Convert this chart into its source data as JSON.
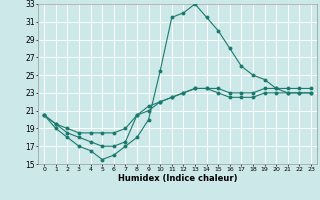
{
  "xlabel": "Humidex (Indice chaleur)",
  "bg_color": "#cce8e8",
  "grid_color": "#ffffff",
  "line_color": "#1a7a6e",
  "xlim": [
    -0.5,
    23.5
  ],
  "ylim": [
    15,
    33
  ],
  "xticks": [
    0,
    1,
    2,
    3,
    4,
    5,
    6,
    7,
    8,
    9,
    10,
    11,
    12,
    13,
    14,
    15,
    16,
    17,
    18,
    19,
    20,
    21,
    22,
    23
  ],
  "yticks": [
    15,
    17,
    19,
    21,
    23,
    25,
    27,
    29,
    31,
    33
  ],
  "line1_x": [
    0,
    1,
    2,
    3,
    4,
    5,
    6,
    7,
    8,
    9,
    10,
    11,
    12,
    13,
    14,
    15,
    16,
    17,
    18,
    19,
    20,
    21,
    22,
    23
  ],
  "line1_y": [
    20.5,
    19.0,
    18.0,
    17.0,
    16.5,
    15.5,
    16.0,
    17.0,
    18.0,
    20.0,
    25.5,
    31.5,
    32.0,
    33.0,
    31.5,
    30.0,
    28.0,
    26.0,
    25.0,
    24.5,
    23.5,
    23.0,
    23.0,
    23.0
  ],
  "line2_x": [
    0,
    1,
    2,
    3,
    4,
    5,
    6,
    7,
    8,
    9,
    10,
    11,
    12,
    13,
    14,
    15,
    16,
    17,
    18,
    19,
    20,
    21,
    22,
    23
  ],
  "line2_y": [
    20.5,
    19.5,
    18.5,
    18.0,
    17.5,
    17.0,
    17.0,
    17.5,
    20.5,
    21.0,
    22.0,
    22.5,
    23.0,
    23.5,
    23.5,
    23.0,
    22.5,
    22.5,
    22.5,
    23.0,
    23.0,
    23.0,
    23.0,
    23.0
  ],
  "line3_x": [
    0,
    1,
    2,
    3,
    4,
    5,
    6,
    7,
    8,
    9,
    10,
    11,
    12,
    13,
    14,
    15,
    16,
    17,
    18,
    19,
    20,
    21,
    22,
    23
  ],
  "line3_y": [
    20.5,
    19.5,
    19.0,
    18.5,
    18.5,
    18.5,
    18.5,
    19.0,
    20.5,
    21.5,
    22.0,
    22.5,
    23.0,
    23.5,
    23.5,
    23.5,
    23.0,
    23.0,
    23.0,
    23.5,
    23.5,
    23.5,
    23.5,
    23.5
  ]
}
